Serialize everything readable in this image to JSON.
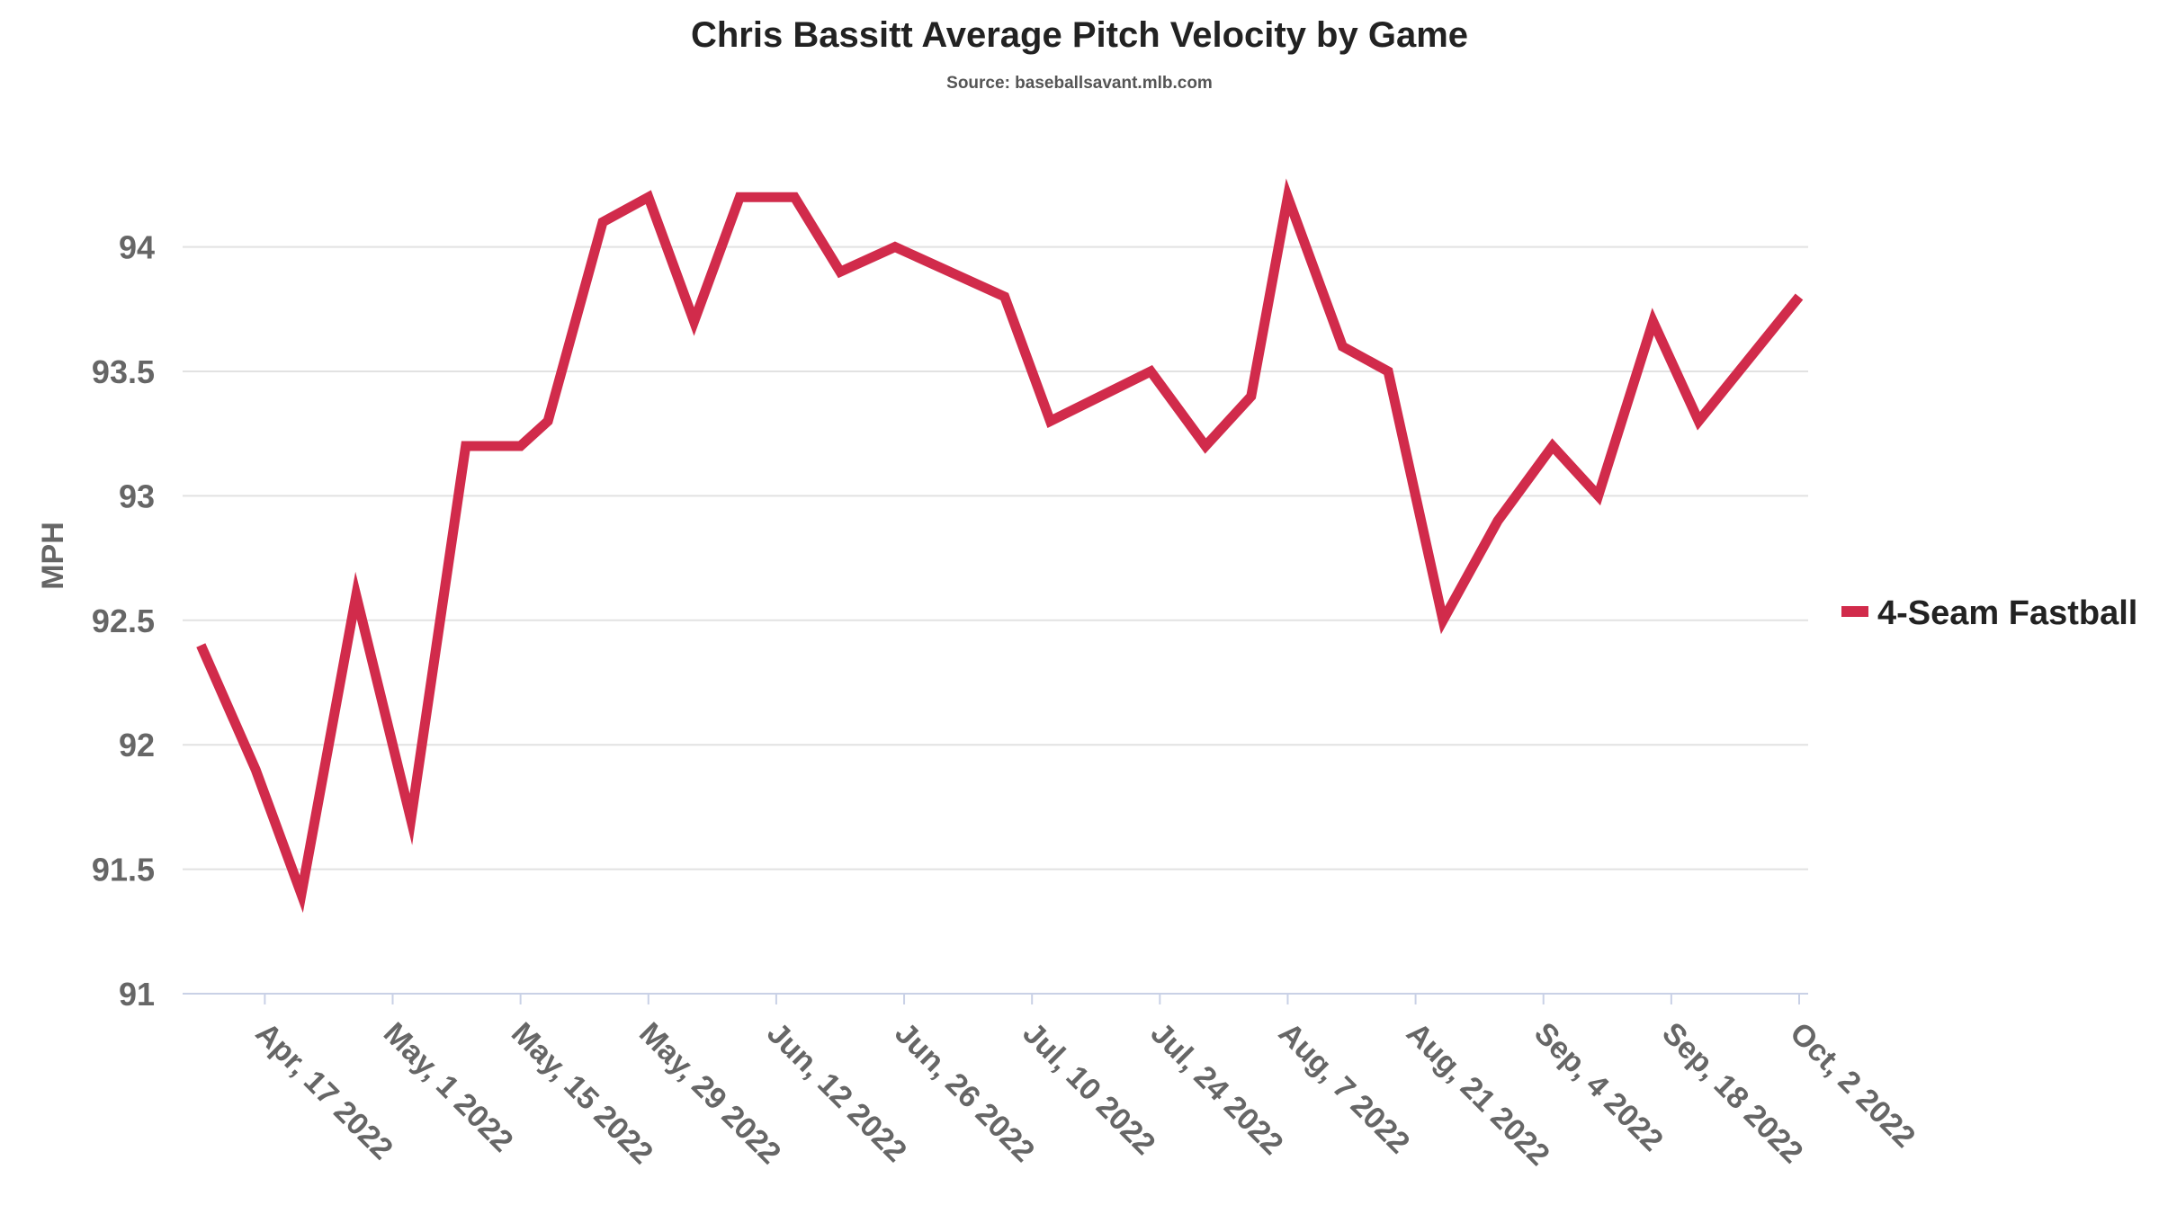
{
  "chart_data": {
    "type": "line",
    "title": "Chris Bassitt Average Pitch Velocity by Game",
    "subtitle": "Source: baseballsavant.mlb.com",
    "xlabel": "",
    "ylabel": "MPH",
    "x_axis_type": "date",
    "xlim": [
      "2022-04-08",
      "2022-10-02"
    ],
    "ylim": [
      91,
      94.45
    ],
    "yticks": [
      91,
      91.5,
      92,
      92.5,
      93,
      93.5,
      94
    ],
    "ytick_labels": [
      "91",
      "91.5",
      "92",
      "92.5",
      "93",
      "93.5",
      "94"
    ],
    "xticks": [
      "2022-04-17",
      "2022-05-01",
      "2022-05-15",
      "2022-05-29",
      "2022-06-12",
      "2022-06-26",
      "2022-07-10",
      "2022-07-24",
      "2022-08-07",
      "2022-08-21",
      "2022-09-04",
      "2022-09-18",
      "2022-10-02"
    ],
    "xtick_labels": [
      "Apr, 17 2022",
      "May, 1 2022",
      "May, 15 2022",
      "May, 29 2022",
      "Jun, 12 2022",
      "Jun, 26 2022",
      "Jul, 10 2022",
      "Jul, 24 2022",
      "Aug, 7 2022",
      "Aug, 21 2022",
      "Sep, 4 2022",
      "Sep, 18 2022",
      "Oct, 2 2022"
    ],
    "grid": true,
    "legend_position": "right",
    "series": [
      {
        "name": "4-Seam Fastball",
        "color": "#d12b4b",
        "x": [
          "2022-04-10",
          "2022-04-16",
          "2022-04-21",
          "2022-04-27",
          "2022-05-03",
          "2022-05-09",
          "2022-05-15",
          "2022-05-18",
          "2022-05-24",
          "2022-05-29",
          "2022-06-03",
          "2022-06-08",
          "2022-06-14",
          "2022-06-19",
          "2022-06-25",
          "2022-07-01",
          "2022-07-07",
          "2022-07-12",
          "2022-07-23",
          "2022-07-29",
          "2022-08-03",
          "2022-08-07",
          "2022-08-13",
          "2022-08-18",
          "2022-08-24",
          "2022-08-30",
          "2022-09-05",
          "2022-09-10",
          "2022-09-16",
          "2022-09-21",
          "2022-10-02"
        ],
        "y": [
          92.4,
          91.9,
          91.4,
          92.6,
          91.7,
          93.2,
          93.2,
          93.3,
          94.1,
          94.2,
          93.7,
          94.2,
          94.2,
          93.9,
          94.0,
          93.9,
          93.8,
          93.3,
          93.5,
          93.2,
          93.4,
          94.2,
          93.6,
          93.5,
          92.5,
          92.9,
          93.2,
          93.0,
          93.7,
          93.3,
          93.8
        ]
      }
    ]
  }
}
